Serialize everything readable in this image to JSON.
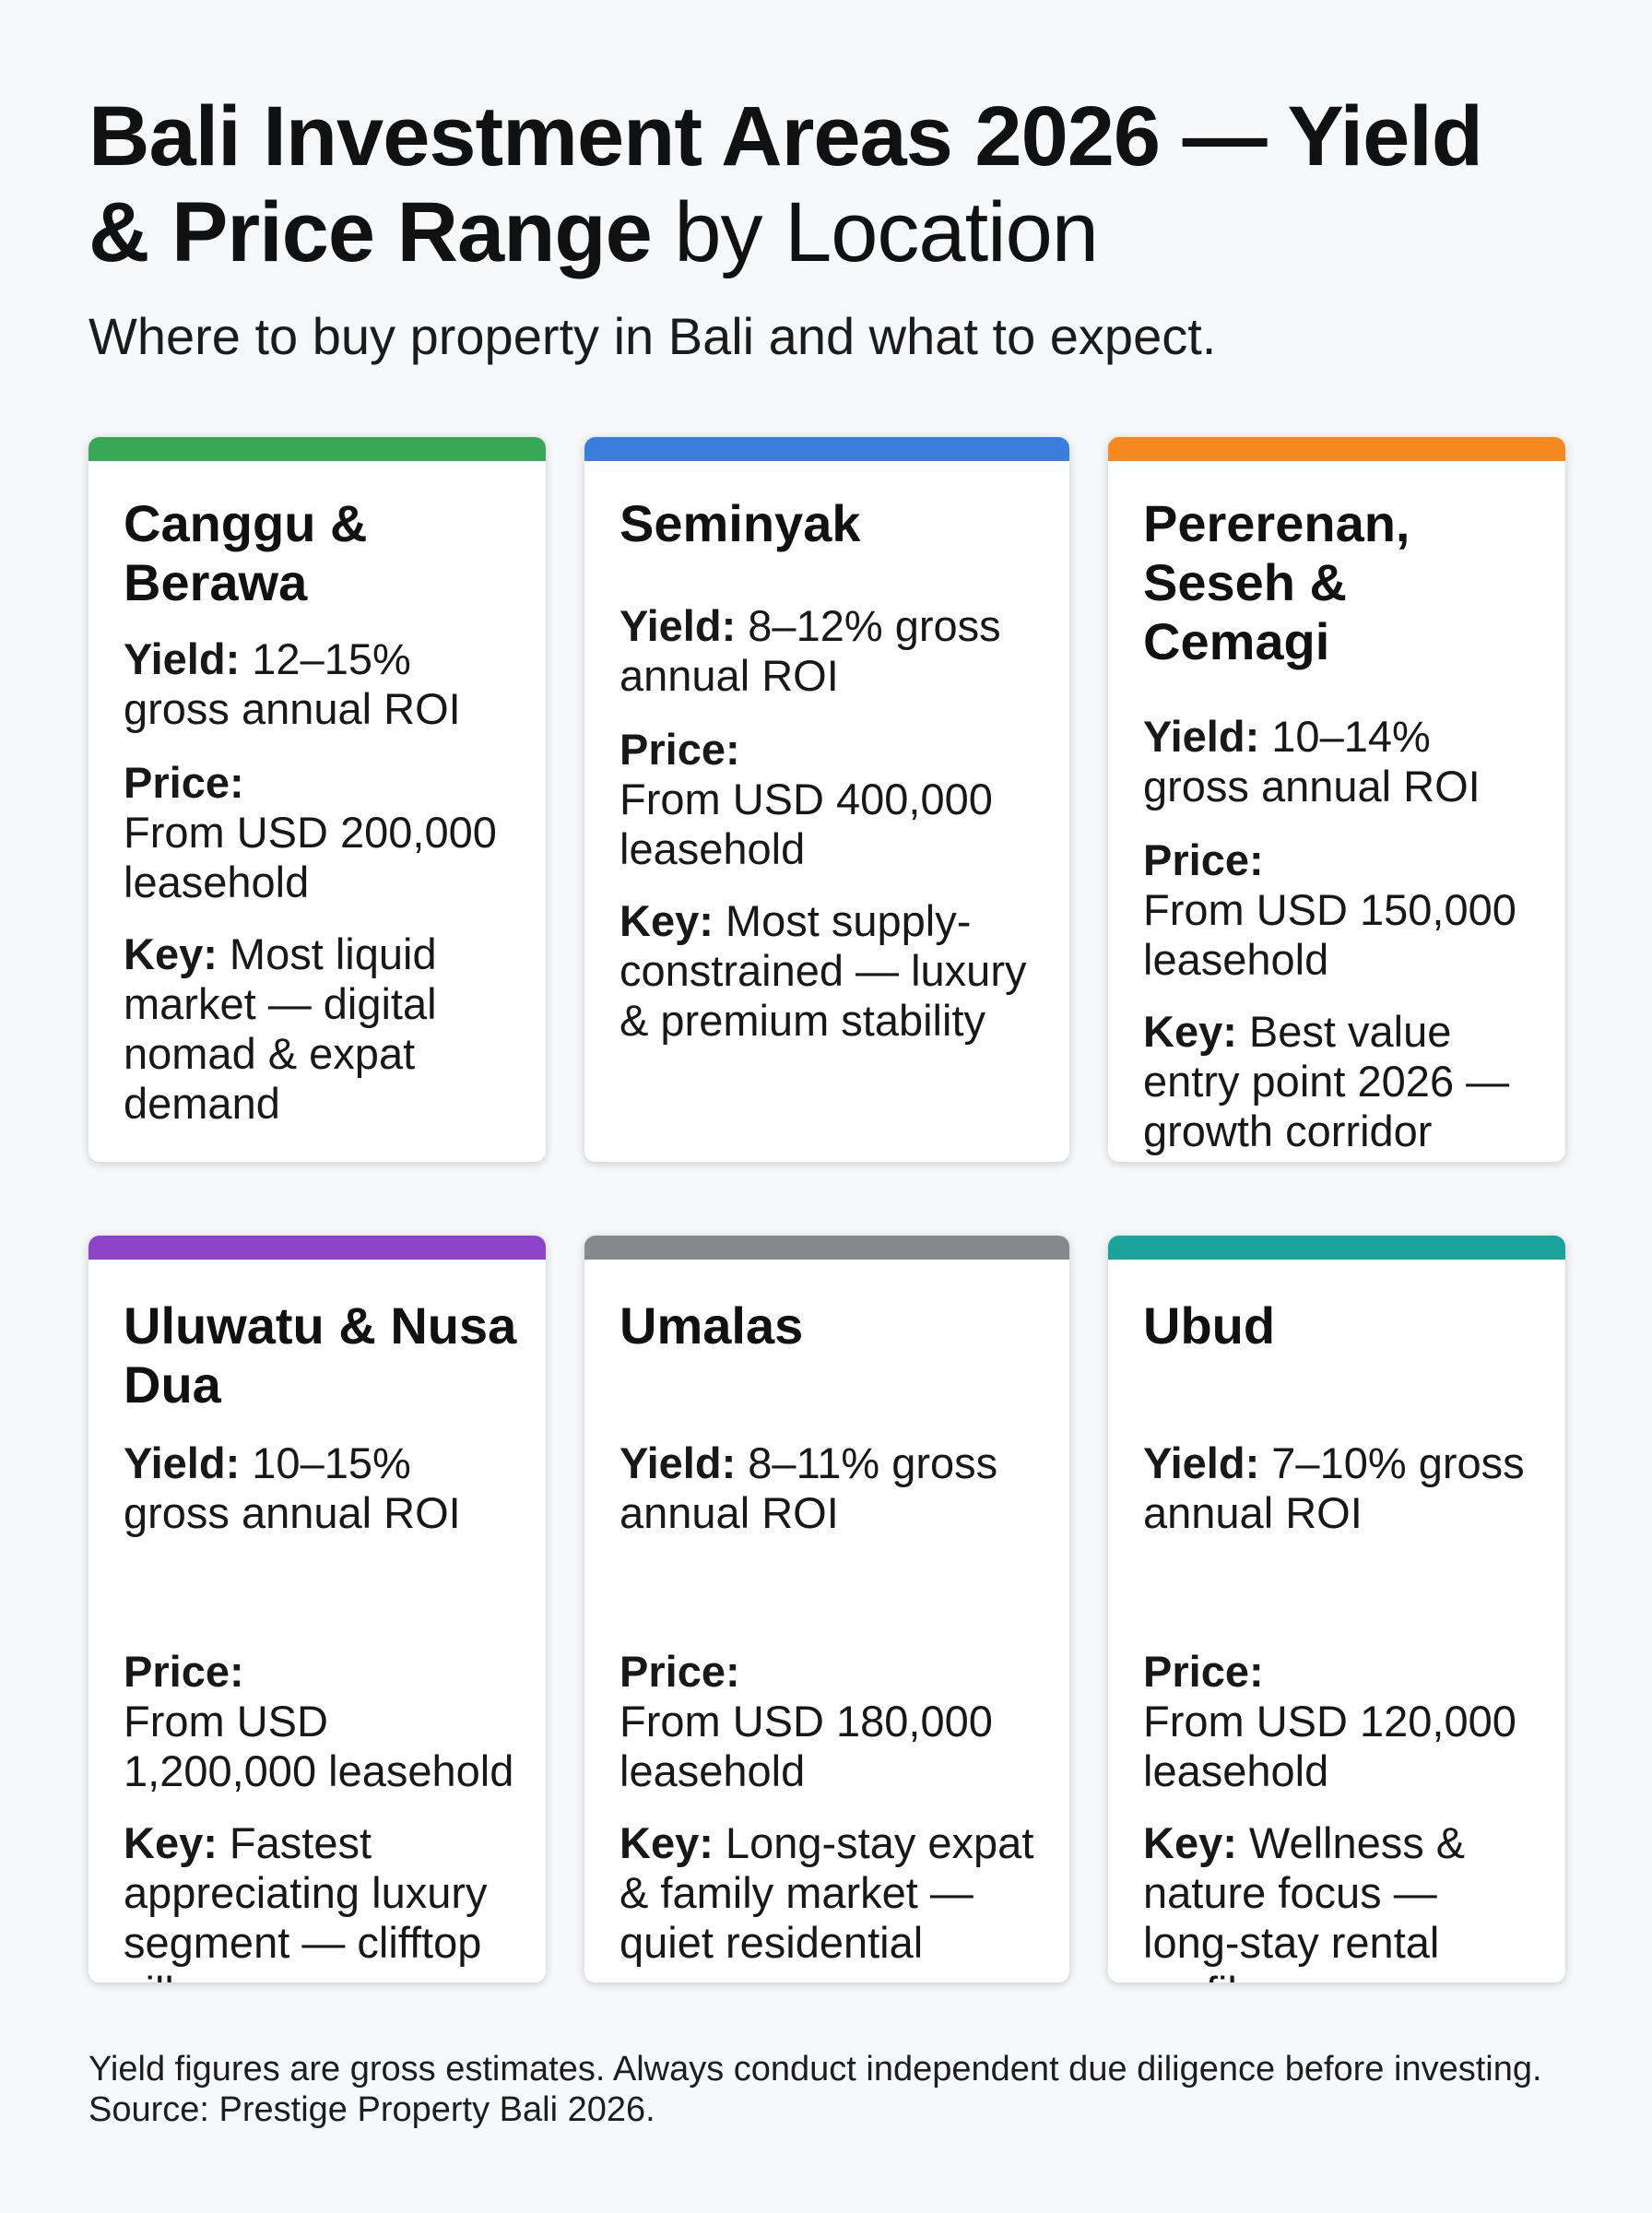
{
  "header": {
    "title_bold": "Bali Investment Areas 2026 — Yield & Price Range",
    "title_light": " by Location",
    "subtitle": "Where to buy property in Bali and what to expect."
  },
  "labels": {
    "yield": "Yield:",
    "price": "Price:",
    "key": "Key:"
  },
  "cards": [
    {
      "name": "Canggu & Berawa",
      "accent": "#3aa757",
      "yield": " 12–15% gross annual ROI",
      "price": "From USD 200,000 leasehold",
      "key": " Most liquid market — digital nomad & expat demand"
    },
    {
      "name": "Seminyak",
      "accent": "#3b7ddd",
      "yield": " 8–12% gross annual ROI",
      "price": "From USD 400,000 leasehold",
      "key": " Most supply-constrained — luxury & premium stability"
    },
    {
      "name": "Pererenan, Seseh & Cemagi",
      "accent": "#f5891f",
      "yield": " 10–14% gross annual ROI",
      "price": "From USD 150,000 leasehold",
      "key": " Best value entry point 2026 — growth corridor"
    },
    {
      "name": "Uluwatu & Nusa Dua",
      "accent": "#8e44c9",
      "yield": " 10–15% gross annual ROI",
      "price": "From USD 1,200,000 leasehold",
      "key": " Fastest appreciating luxury segment — clifftop villas"
    },
    {
      "name": "Umalas",
      "accent": "#85888d",
      "yield": " 8–11% gross annual ROI",
      "price": "From USD 180,000 leasehold",
      "key": " Long-stay expat & family market — quiet residential"
    },
    {
      "name": "Ubud",
      "accent": "#1aa39a",
      "yield": " 7–10% gross annual ROI",
      "price": "From USD 120,000 leasehold",
      "key": " Wellness & nature focus — long-stay rental profile"
    }
  ],
  "footer": {
    "disclaimer": "Yield figures are gross estimates. Always conduct independent due diligence before investing.",
    "source": "Source: Prestige Property Bali 2026."
  }
}
